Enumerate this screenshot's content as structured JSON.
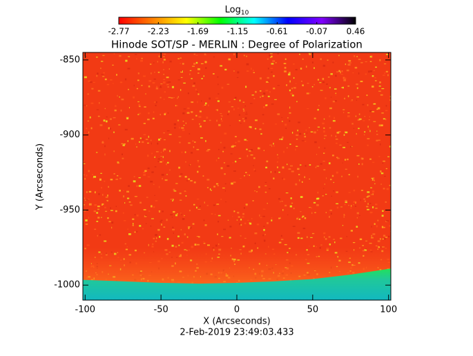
{
  "chart_data": {
    "type": "image",
    "title": "Hinode SOT/SP - MERLIN : Degree of Polarization",
    "xlabel": "X (Arcseconds)",
    "ylabel": "Y (Arcseconds)",
    "footer": "2-Feb-2019 23:49:03.433",
    "xlim": [
      -101.5,
      101.5
    ],
    "xticks": [
      -100,
      -50,
      0,
      50,
      100
    ],
    "ylim": [
      -1010,
      -845
    ],
    "yticks": [
      -1000,
      -950,
      -900,
      -850
    ],
    "colorbar": {
      "label": "Log",
      "label_sub": "10",
      "lim": [
        -2.77,
        0.46
      ],
      "ticks": [
        -2.77,
        -2.23,
        -1.69,
        -1.15,
        -0.61,
        -0.07,
        0.46
      ],
      "colors": [
        "#ff0000",
        "#ff8000",
        "#ffff00",
        "#00ff00",
        "#00ffff",
        "#0000ff",
        "#8000ff",
        "#000000"
      ]
    },
    "background_color": "#f23a14",
    "limb": {
      "x": [
        -101.5,
        -75,
        -50,
        -25,
        0,
        25,
        50,
        75,
        101.5
      ],
      "y": [
        -996.5,
        -997.5,
        -998.5,
        -999,
        -998.5,
        -997.5,
        -996,
        -993,
        -989
      ]
    }
  }
}
